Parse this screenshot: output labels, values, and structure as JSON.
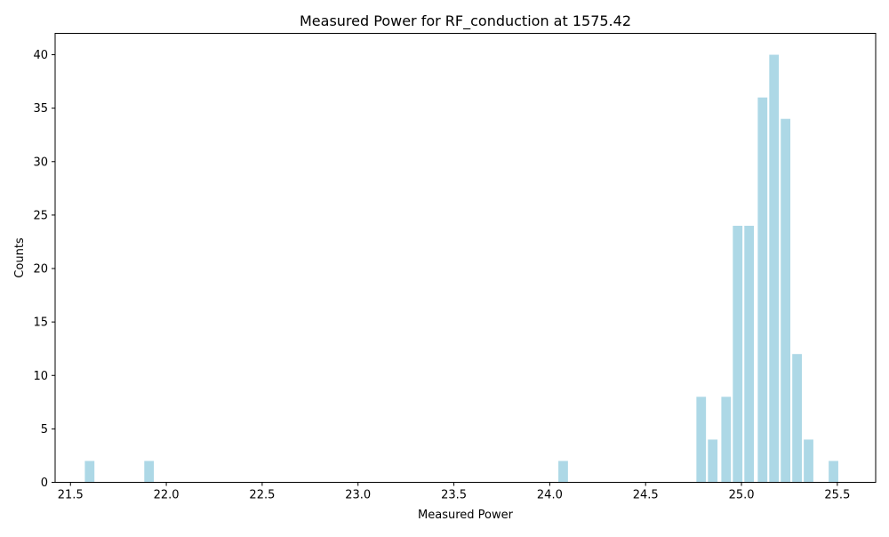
{
  "chart_data": {
    "type": "bar",
    "title": "Measured Power for RF_conduction at 1575.42",
    "xlabel": "Measured Power",
    "ylabel": "Counts",
    "xlim": [
      21.42,
      25.7
    ],
    "ylim": [
      0,
      42
    ],
    "x_ticks": [
      "21.5",
      "22.0",
      "22.5",
      "23.0",
      "23.5",
      "24.0",
      "24.5",
      "25.0",
      "25.5"
    ],
    "x_tick_values": [
      21.5,
      22.0,
      22.5,
      23.0,
      23.5,
      24.0,
      24.5,
      25.0,
      25.5
    ],
    "y_ticks": [
      "0",
      "5",
      "10",
      "15",
      "20",
      "25",
      "30",
      "35",
      "40"
    ],
    "y_tick_values": [
      0,
      5,
      10,
      15,
      20,
      25,
      30,
      35,
      40
    ],
    "bar_width": 0.05,
    "bar_color": "#add8e6",
    "grid": false,
    "legend": "none",
    "x": [
      21.6,
      21.91,
      24.07,
      24.79,
      24.85,
      24.92,
      24.98,
      25.04,
      25.11,
      25.17,
      25.23,
      25.29,
      25.35,
      25.48
    ],
    "values": [
      2,
      2,
      2,
      8,
      4,
      8,
      24,
      24,
      36,
      40,
      34,
      12,
      4,
      2
    ]
  }
}
